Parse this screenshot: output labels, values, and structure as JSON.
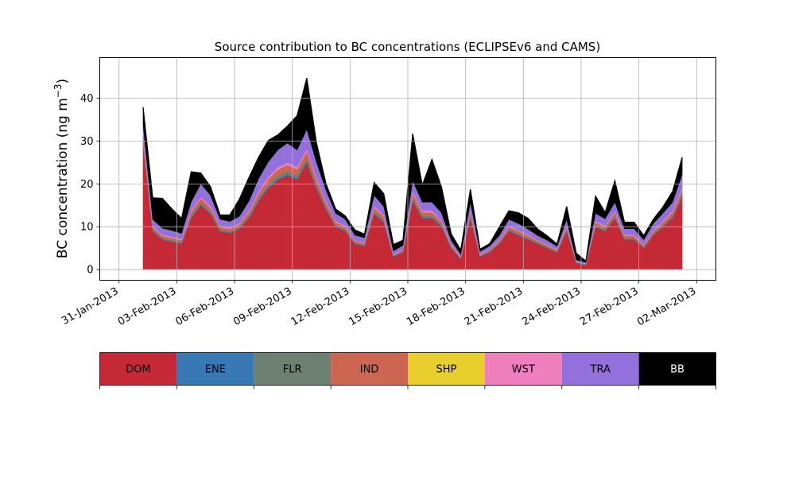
{
  "chart_data": {
    "type": "area",
    "stacked": true,
    "title": "Source contribution to BC concentrations (ECLIPSEv6 and CAMS)",
    "ylabel_main": "BC concentration (ng m",
    "ylabel_sup": "−3",
    "ylabel_close": ")",
    "xlabel": "",
    "ylim": [
      -2.5,
      49.5
    ],
    "xlim": [
      "2013-01-30",
      "2013-03-03"
    ],
    "grid": true,
    "yticks": [
      0,
      10,
      20,
      30,
      40
    ],
    "xticks": [
      "2013-01-31",
      "2013-02-03",
      "2013-02-06",
      "2013-02-09",
      "2013-02-12",
      "2013-02-15",
      "2013-02-18",
      "2013-02-21",
      "2013-02-24",
      "2013-02-27",
      "2013-03-02"
    ],
    "xtick_labels": [
      "31-Jan-2013",
      "03-Feb-2013",
      "06-Feb-2013",
      "09-Feb-2013",
      "12-Feb-2013",
      "15-Feb-2013",
      "18-Feb-2013",
      "21-Feb-2013",
      "24-Feb-2013",
      "27-Feb-2013",
      "02-Mar-2013"
    ],
    "x": [
      "2013-02-01 06:00",
      "2013-02-01 18:00",
      "2013-02-02 06:00",
      "2013-02-02 18:00",
      "2013-02-03 06:00",
      "2013-02-03 18:00",
      "2013-02-04 06:00",
      "2013-02-04 18:00",
      "2013-02-05 06:00",
      "2013-02-05 18:00",
      "2013-02-06 06:00",
      "2013-02-06 18:00",
      "2013-02-07 06:00",
      "2013-02-07 18:00",
      "2013-02-08 06:00",
      "2013-02-08 18:00",
      "2013-02-09 06:00",
      "2013-02-09 18:00",
      "2013-02-10 06:00",
      "2013-02-10 18:00",
      "2013-02-11 06:00",
      "2013-02-11 18:00",
      "2013-02-12 06:00",
      "2013-02-12 18:00",
      "2013-02-13 06:00",
      "2013-02-13 18:00",
      "2013-02-14 06:00",
      "2013-02-14 18:00",
      "2013-02-15 06:00",
      "2013-02-15 18:00",
      "2013-02-16 06:00",
      "2013-02-16 18:00",
      "2013-02-17 06:00",
      "2013-02-17 18:00",
      "2013-02-18 06:00",
      "2013-02-18 18:00",
      "2013-02-19 06:00",
      "2013-02-19 18:00",
      "2013-02-20 06:00",
      "2013-02-20 18:00",
      "2013-02-21 06:00",
      "2013-02-21 18:00",
      "2013-02-22 06:00",
      "2013-02-22 18:00",
      "2013-02-23 06:00",
      "2013-02-23 18:00",
      "2013-02-24 06:00",
      "2013-02-24 18:00",
      "2013-02-25 06:00",
      "2013-02-25 18:00",
      "2013-02-26 06:00",
      "2013-02-26 18:00",
      "2013-02-27 06:00",
      "2013-02-27 18:00",
      "2013-02-28 06:00",
      "2013-02-28 18:00",
      "2013-03-01 06:00"
    ],
    "series": [
      {
        "name": "DOM",
        "color": "#c62936",
        "values": [
          29,
          9,
          7,
          6.5,
          6,
          12,
          15,
          13,
          9,
          8.5,
          9.5,
          12,
          16,
          19,
          21,
          22,
          21,
          25,
          19,
          14,
          10,
          9,
          6,
          5.5,
          13,
          11,
          3,
          4,
          16,
          12,
          12,
          10,
          5,
          2.5,
          12,
          3,
          4,
          6,
          9,
          8,
          7,
          6,
          5,
          4,
          9,
          1.5,
          1,
          10,
          9,
          12,
          7,
          7,
          5,
          8,
          10,
          12,
          17
        ]
      },
      {
        "name": "ENE",
        "color": "#3878b4",
        "values": [
          0.2,
          0.1,
          0.1,
          0.1,
          0.1,
          0.2,
          0.2,
          0.2,
          0.1,
          0.1,
          0.1,
          0.2,
          0.2,
          0.3,
          0.3,
          0.3,
          0.3,
          0.3,
          0.3,
          0.2,
          0.1,
          0.1,
          0.1,
          0.1,
          0.2,
          0.2,
          0.1,
          0.1,
          0.2,
          0.2,
          0.2,
          0.2,
          0.1,
          0.1,
          0.2,
          0.1,
          0.1,
          0.1,
          0.1,
          0.1,
          0.1,
          0.1,
          0.1,
          0.1,
          0.1,
          0.1,
          0.1,
          0.1,
          0.1,
          0.2,
          0.1,
          0.1,
          0.1,
          0.1,
          0.1,
          0.2,
          0.2
        ]
      },
      {
        "name": "FLR",
        "color": "#6e8170",
        "values": [
          0.6,
          0.3,
          0.3,
          0.3,
          0.3,
          0.4,
          0.5,
          0.4,
          0.3,
          0.3,
          0.3,
          0.4,
          0.5,
          0.6,
          0.7,
          0.7,
          0.7,
          0.8,
          0.6,
          0.5,
          0.3,
          0.3,
          0.2,
          0.2,
          0.4,
          0.4,
          0.1,
          0.2,
          0.5,
          0.4,
          0.4,
          0.3,
          0.2,
          0.1,
          0.4,
          0.1,
          0.2,
          0.2,
          0.3,
          0.3,
          0.3,
          0.2,
          0.2,
          0.1,
          0.3,
          0.1,
          0.1,
          0.3,
          0.3,
          0.4,
          0.3,
          0.3,
          0.2,
          0.3,
          0.3,
          0.4,
          0.5
        ]
      },
      {
        "name": "IND",
        "color": "#cc6653",
        "values": [
          1.2,
          0.6,
          0.5,
          0.5,
          0.5,
          0.9,
          1,
          0.9,
          0.6,
          0.6,
          0.7,
          0.9,
          1.1,
          1.3,
          1.4,
          1.5,
          1.4,
          1.6,
          1.3,
          1,
          0.7,
          0.6,
          0.4,
          0.4,
          0.9,
          0.8,
          0.2,
          0.3,
          1.1,
          0.8,
          0.8,
          0.7,
          0.4,
          0.2,
          0.8,
          0.2,
          0.3,
          0.4,
          0.6,
          0.6,
          0.5,
          0.4,
          0.4,
          0.3,
          0.6,
          0.1,
          0.1,
          0.7,
          0.6,
          0.8,
          0.5,
          0.5,
          0.4,
          0.6,
          0.7,
          0.8,
          1.1
        ]
      },
      {
        "name": "SHP",
        "color": "#e8cf2e",
        "values": [
          0.05,
          0.05,
          0.05,
          0.05,
          0.05,
          0.05,
          0.05,
          0.05,
          0.05,
          0.05,
          0.05,
          0.05,
          0.05,
          0.05,
          0.05,
          0.05,
          0.05,
          0.05,
          0.05,
          0.05,
          0.05,
          0.05,
          0.05,
          0.05,
          0.05,
          0.05,
          0.05,
          0.05,
          0.05,
          0.05,
          0.05,
          0.05,
          0.05,
          0.05,
          0.05,
          0.05,
          0.05,
          0.05,
          0.05,
          0.05,
          0.05,
          0.05,
          0.05,
          0.05,
          0.05,
          0.05,
          0.05,
          0.05,
          0.05,
          0.05,
          0.05,
          0.05,
          0.05,
          0.05,
          0.05,
          0.05,
          0.05
        ]
      },
      {
        "name": "WST",
        "color": "#f07fbe",
        "values": [
          0.4,
          0.2,
          0.2,
          0.2,
          0.2,
          0.3,
          0.3,
          0.3,
          0.2,
          0.2,
          0.2,
          0.3,
          0.4,
          0.4,
          0.5,
          0.5,
          0.5,
          0.5,
          0.4,
          0.3,
          0.2,
          0.2,
          0.1,
          0.1,
          0.3,
          0.3,
          0.1,
          0.1,
          0.4,
          0.3,
          0.3,
          0.2,
          0.1,
          0.1,
          0.3,
          0.1,
          0.1,
          0.1,
          0.2,
          0.2,
          0.2,
          0.1,
          0.1,
          0.1,
          0.2,
          0.05,
          0.05,
          0.2,
          0.2,
          0.3,
          0.2,
          0.2,
          0.1,
          0.2,
          0.2,
          0.3,
          0.4
        ]
      },
      {
        "name": "TRA",
        "color": "#9370db",
        "values": [
          2.5,
          1.5,
          1.5,
          1.5,
          1.3,
          2,
          3,
          2.5,
          1.5,
          1.5,
          1.6,
          2.2,
          3,
          3.5,
          4,
          4.5,
          4,
          4.5,
          3.5,
          2.5,
          1.8,
          1.5,
          1.2,
          1.1,
          2.5,
          2,
          0.8,
          0.9,
          2.5,
          2,
          2,
          1.8,
          1,
          0.5,
          2,
          0.7,
          0.8,
          1.1,
          1.5,
          1.5,
          1.3,
          1.1,
          1,
          0.8,
          1.5,
          0.4,
          0.3,
          1.8,
          1.6,
          2,
          1.4,
          1.4,
          1.1,
          1.5,
          1.8,
          2,
          3
        ]
      },
      {
        "name": "BB",
        "color": "#000000",
        "values": [
          4,
          5,
          7,
          5,
          3.5,
          7,
          2.5,
          2,
          1,
          1.5,
          4,
          5.5,
          5,
          5,
          3.5,
          4,
          8,
          12,
          4.5,
          1.5,
          1,
          0.8,
          1.2,
          0.8,
          3,
          3,
          1.5,
          1.2,
          11,
          4,
          10,
          6,
          1.5,
          1,
          3,
          0.5,
          0.5,
          2,
          2,
          2.5,
          2.5,
          1.5,
          1,
          0.5,
          3,
          1.5,
          0.3,
          4,
          1.5,
          5,
          1.5,
          1.5,
          1,
          1,
          1.5,
          2.5,
          4
        ]
      }
    ]
  }
}
